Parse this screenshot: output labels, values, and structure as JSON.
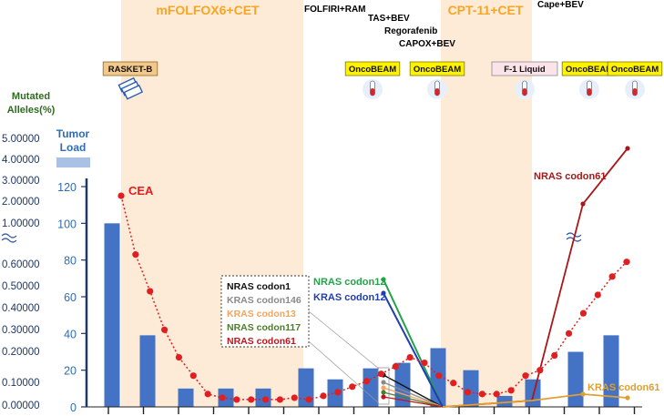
{
  "chart_data": {
    "type": "bar",
    "phases": [
      {
        "label": "mFOLFOX6+CET",
        "color": "#F5A623",
        "bold": true
      },
      {
        "label": "FOLFIRI+RAM",
        "color": "#000000",
        "bold": false
      },
      {
        "label": "TAS+BEV",
        "color": "#000000",
        "bold": false
      },
      {
        "label": "Regorafenib",
        "color": "#000000",
        "bold": false
      },
      {
        "label": "CAPOX+BEV",
        "color": "#000000",
        "bold": false
      },
      {
        "label": "CPT-11+CET",
        "color": "#F5A623",
        "bold": true
      },
      {
        "label": "Cape+BEV",
        "color": "#000000",
        "bold": false
      }
    ],
    "tests": [
      {
        "label": "RASKET-B",
        "style": "tan"
      },
      {
        "label": "OncoBEAM",
        "style": "yellow"
      },
      {
        "label": "OncoBEAM",
        "style": "yellow"
      },
      {
        "label": "F-1 Liquid",
        "style": "pink"
      },
      {
        "label": "OncoBEAM",
        "style": "yellow"
      },
      {
        "label": "OncoBEAM",
        "style": "yellow"
      }
    ],
    "left_axis": {
      "title": [
        "Mutated",
        "Alleles(%)"
      ],
      "ticks": [
        "5.00000",
        "4.00000",
        "3.00000",
        "2.00000",
        "1.00000",
        "0.60000",
        "0.50000",
        "0.40000",
        "0.30000",
        "0.20000",
        "0.10000",
        "0.00000"
      ]
    },
    "tumor_axis": {
      "title": [
        "Tumor",
        "Load"
      ],
      "ticks": [
        "120",
        "100",
        "80",
        "60",
        "40",
        "20",
        "0"
      ],
      "ylim": [
        0,
        120
      ]
    },
    "tumor_load": [
      100,
      39,
      10,
      10,
      10,
      21,
      15,
      21,
      24,
      32,
      20,
      6,
      15,
      30,
      39
    ],
    "cea": {
      "label": "CEA",
      "color": "#E02020",
      "values": [
        115,
        83,
        63,
        42,
        27,
        17,
        7,
        5,
        4,
        4,
        4,
        4,
        5,
        4,
        6,
        8,
        11,
        14,
        18,
        22,
        27,
        24,
        17,
        13,
        8,
        7,
        7,
        9,
        17,
        20,
        28,
        40,
        51,
        61,
        71,
        79
      ]
    },
    "mutations": [
      {
        "name": "NRAS codon1",
        "color": "#111111",
        "before": 0.2,
        "after": 0
      },
      {
        "name": "KRAS codon146",
        "color": "#8A8A8A",
        "before": 0.18,
        "after": 0
      },
      {
        "name": "KRAS codon13",
        "color": "#F4A460",
        "before": 0.12,
        "after": 0
      },
      {
        "name": "NRAS codon117",
        "color": "#4B7F2A",
        "before": 0.08,
        "after": 0
      },
      {
        "name": "NRAS codon61",
        "color": "#C0151B",
        "before": 0.06,
        "after": 0
      },
      {
        "name": "NRAS codon12",
        "color": "#22A34A",
        "before": 0.5,
        "after": 0
      },
      {
        "name": "KRAS codon12",
        "color": "#1F3FB0",
        "before": 0.45,
        "after": 0
      }
    ],
    "late_series": [
      {
        "name": "NRAS codon61",
        "color": "#A81818",
        "values": [
          0,
          0.02,
          1.0,
          4.5
        ]
      },
      {
        "name": "KRAS codon61",
        "color": "#E0A030",
        "values": [
          0,
          0.02,
          0.04,
          0.03
        ]
      }
    ],
    "legend_box_labels": [
      "NRAS codon1",
      "KRAS codon146",
      "KRAS codon13",
      "NRAS codon117",
      "NRAS codon61"
    ],
    "grid": false
  }
}
